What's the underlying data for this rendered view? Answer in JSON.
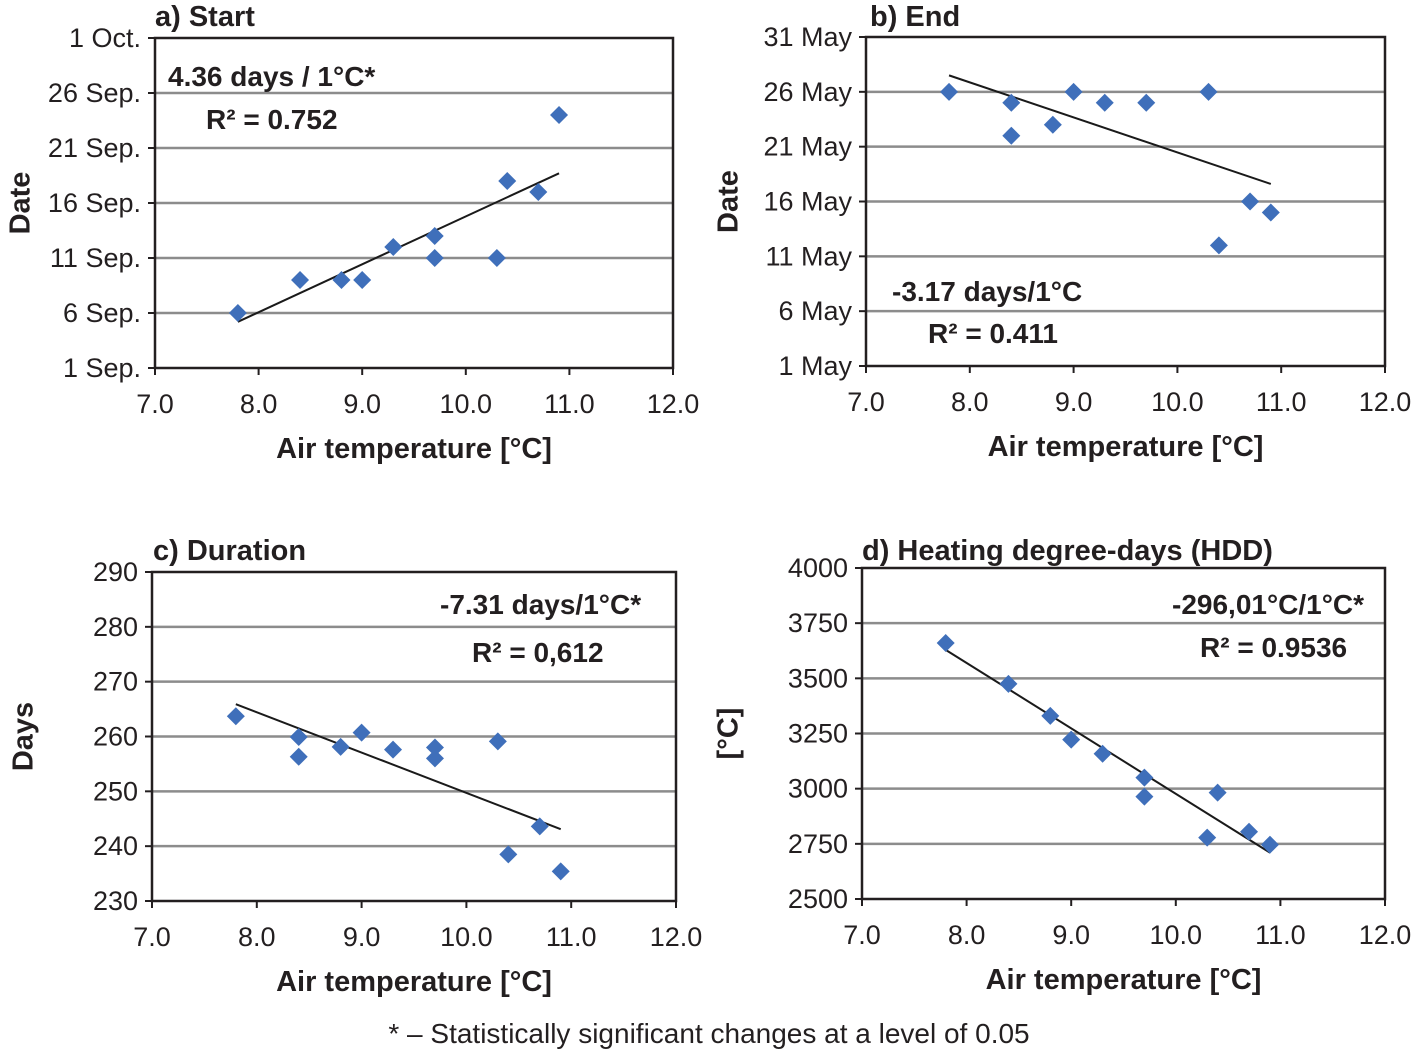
{
  "footnote": "* – Statistically significant changes at a level of 0.05",
  "colors": {
    "marker": "#3f6fba",
    "grid": "#8c8c8c",
    "trend": "#1a1a1a"
  },
  "chart_data": [
    {
      "type": "scatter",
      "title": "a) Start",
      "xlabel": "Air temperature [°C]",
      "ylabel": "Date",
      "xlim": [
        7.0,
        12.0
      ],
      "xticks": [
        "7.0",
        "8.0",
        "9.0",
        "10.0",
        "11.0",
        "12.0"
      ],
      "ylim": [
        "1 Sep.",
        "1 Oct."
      ],
      "yticks": [
        "1 Sep.",
        "6 Sep.",
        "11 Sep.",
        "16 Sep.",
        "21 Sep.",
        "26 Sep.",
        "1 Oct."
      ],
      "grid": true,
      "x": [
        7.8,
        8.4,
        8.8,
        9.0,
        9.3,
        9.7,
        9.7,
        10.3,
        10.4,
        10.7,
        10.9
      ],
      "y": [
        "6 Sep.",
        "9 Sep.",
        "9 Sep.",
        "9 Sep.",
        "12 Sep.",
        "13 Sep.",
        "11 Sep.",
        "11 Sep.",
        "18 Sep.",
        "17 Sep.",
        "24 Sep."
      ],
      "trend": {
        "x": [
          7.8,
          10.9
        ],
        "y": [
          "5.2 Sep.",
          "18.7 Sep."
        ]
      },
      "annotations": [
        "4.36 days / 1°C*",
        "R² = 0.752"
      ]
    },
    {
      "type": "scatter",
      "title": "b) End",
      "xlabel": "Air temperature [°C]",
      "ylabel": "Date",
      "xlim": [
        7.0,
        12.0
      ],
      "xticks": [
        "7.0",
        "8.0",
        "9.0",
        "10.0",
        "11.0",
        "12.0"
      ],
      "ylim": [
        "1 May",
        "31 May"
      ],
      "yticks": [
        "1 May",
        "6 May",
        "11 May",
        "16 May",
        "21 May",
        "26 May",
        "31 May"
      ],
      "grid": true,
      "x": [
        7.8,
        8.4,
        8.4,
        8.8,
        9.0,
        9.3,
        9.7,
        10.3,
        10.4,
        10.7,
        10.9
      ],
      "y": [
        "26 May",
        "25 May",
        "22 May",
        "23 May",
        "26 May",
        "25 May",
        "25 May",
        "26 May",
        "12 May",
        "16 May",
        "15 May"
      ],
      "trend": {
        "x": [
          7.8,
          10.9
        ],
        "y": [
          "27.5 May",
          "17.6 May"
        ]
      },
      "annotations": [
        "-3.17 days/1°C",
        "R² = 0.411"
      ]
    },
    {
      "type": "scatter",
      "title": "c) Duration",
      "xlabel": "Air temperature [°C]",
      "ylabel": "Days",
      "xlim": [
        7.0,
        12.0
      ],
      "xticks": [
        "7.0",
        "8.0",
        "9.0",
        "10.0",
        "11.0",
        "12.0"
      ],
      "ylim": [
        230,
        290
      ],
      "yticks": [
        "230",
        "240",
        "250",
        "260",
        "270",
        "280",
        "290"
      ],
      "grid": true,
      "x": [
        7.8,
        8.4,
        8.4,
        8.8,
        9.0,
        9.3,
        9.7,
        9.7,
        10.3,
        10.4,
        10.7,
        10.9
      ],
      "y": [
        263.7,
        259.9,
        256.3,
        258.1,
        260.7,
        257.6,
        258.0,
        256.0,
        259.1,
        238.5,
        243.6,
        235.4
      ],
      "trend": {
        "x": [
          7.8,
          10.9
        ],
        "y": [
          265.9,
          243.1
        ]
      },
      "annotations": [
        "-7.31 days/1°C*",
        "R² = 0,612"
      ]
    },
    {
      "type": "scatter",
      "title": "d) Heating degree-days (HDD)",
      "xlabel": "Air temperature [°C]",
      "ylabel": "[°C]",
      "xlim": [
        7.0,
        12.0
      ],
      "xticks": [
        "7.0",
        "8.0",
        "9.0",
        "10.0",
        "11.0",
        "12.0"
      ],
      "ylim": [
        2500,
        4000
      ],
      "yticks": [
        "2500",
        "2750",
        "3000",
        "3250",
        "3500",
        "3750",
        "4000"
      ],
      "grid": true,
      "x": [
        7.8,
        8.4,
        8.8,
        9.0,
        9.3,
        9.7,
        9.7,
        10.3,
        10.4,
        10.7,
        10.9
      ],
      "y": [
        3660,
        3475,
        3330,
        3222,
        3158,
        3050,
        2964,
        2778,
        2982,
        2805,
        2746
      ],
      "trend": {
        "x": [
          7.8,
          10.9
        ],
        "y": [
          3629,
          2710
        ]
      },
      "annotations": [
        "-296,01°C/1°C*",
        "R² = 0.9536"
      ]
    }
  ]
}
